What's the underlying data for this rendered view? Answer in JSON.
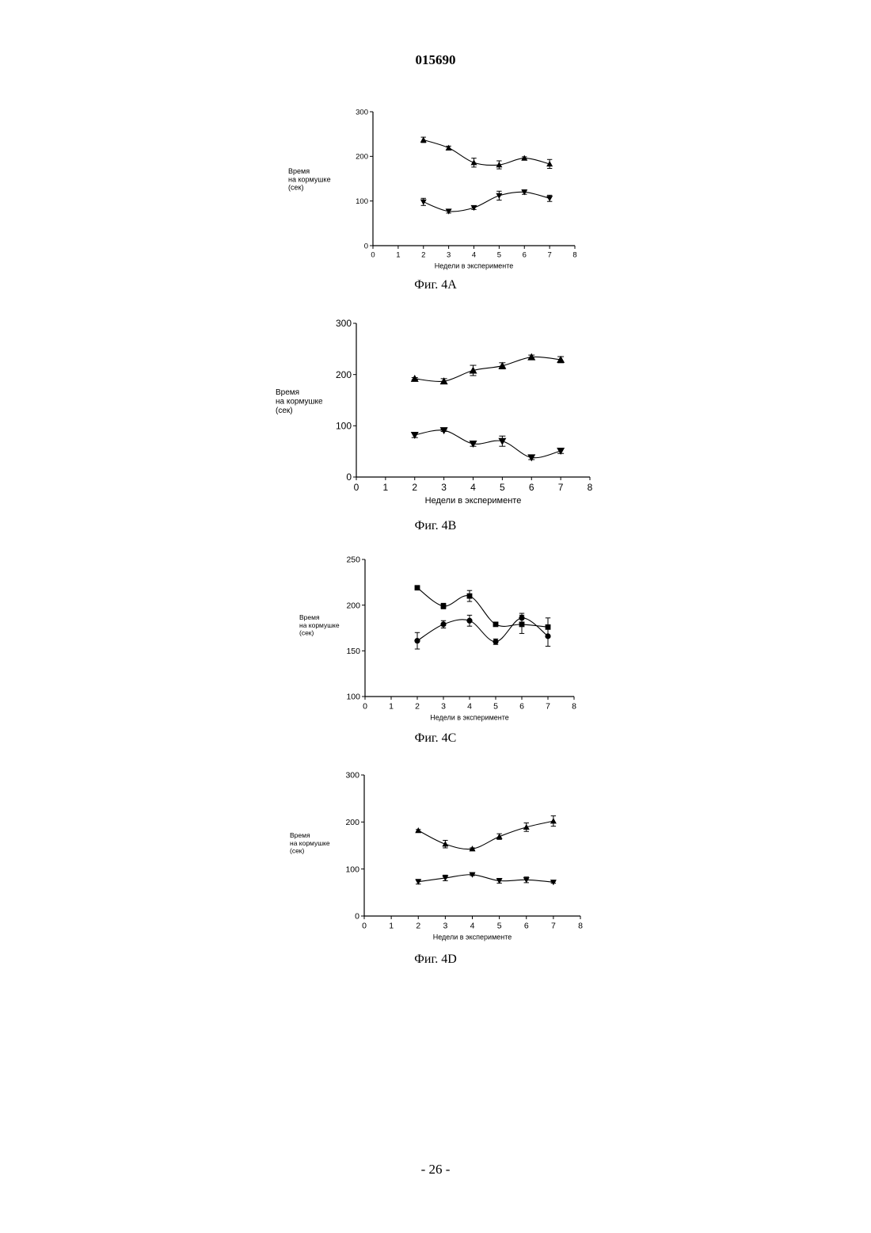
{
  "header": {
    "doc_number": "015690"
  },
  "footer": {
    "page_number": "- 26 -"
  },
  "chart_data": [
    {
      "id": "4A",
      "type": "line",
      "caption": "Фиг. 4А",
      "ylabel": [
        "Время",
        "на кормушке",
        "(сек)"
      ],
      "xlabel": "Недели в эксперименте",
      "xlim": [
        0,
        8
      ],
      "ylim": [
        0,
        300
      ],
      "xticks": [
        0,
        1,
        2,
        3,
        4,
        5,
        6,
        7,
        8
      ],
      "yticks": [
        0,
        100,
        200,
        300
      ],
      "series": [
        {
          "marker": "triangle-up",
          "x": [
            2,
            3,
            4,
            5,
            6,
            7
          ],
          "y": [
            237,
            219,
            186,
            181,
            196,
            183
          ],
          "err": [
            6,
            4,
            10,
            9,
            3,
            10
          ]
        },
        {
          "marker": "triangle-down",
          "x": [
            2,
            3,
            4,
            5,
            6,
            7
          ],
          "y": [
            98,
            77,
            85,
            112,
            120,
            106
          ],
          "err": [
            8,
            4,
            4,
            10,
            5,
            7
          ]
        }
      ]
    },
    {
      "id": "4B",
      "type": "line",
      "caption": "Фиг. 4В",
      "ylabel": [
        "Время",
        "на кормушке",
        "(сек)"
      ],
      "xlabel": "Недели в эксперименте",
      "xlim": [
        0,
        8
      ],
      "ylim": [
        0,
        300
      ],
      "xticks": [
        0,
        1,
        2,
        3,
        4,
        5,
        6,
        7,
        8
      ],
      "yticks": [
        0,
        100,
        200,
        300
      ],
      "series": [
        {
          "marker": "triangle-up",
          "x": [
            2,
            3,
            4,
            5,
            6,
            7
          ],
          "y": [
            192,
            187,
            208,
            217,
            234,
            229
          ],
          "err": [
            2,
            5,
            10,
            6,
            4,
            6
          ]
        },
        {
          "marker": "triangle-down",
          "x": [
            2,
            3,
            4,
            5,
            6,
            7
          ],
          "y": [
            82,
            91,
            65,
            70,
            38,
            51
          ],
          "err": [
            5,
            2,
            5,
            10,
            4,
            5
          ]
        }
      ]
    },
    {
      "id": "4C",
      "type": "line",
      "caption": "Фиг. 4С",
      "ylabel": [
        "Время",
        "на кормушке",
        "(сек)"
      ],
      "xlabel": "Недели в эксперименте",
      "xlim": [
        0,
        8
      ],
      "ylim": [
        100,
        250
      ],
      "xticks": [
        0,
        1,
        2,
        3,
        4,
        5,
        6,
        7,
        8
      ],
      "yticks": [
        100,
        150,
        200,
        250
      ],
      "series": [
        {
          "marker": "square",
          "x": [
            2,
            3,
            4,
            5,
            6,
            7
          ],
          "y": [
            219,
            199,
            210,
            179,
            179,
            176
          ],
          "err": [
            1,
            3,
            6,
            2,
            10,
            10
          ]
        },
        {
          "marker": "circle",
          "x": [
            2,
            3,
            4,
            5,
            6,
            7
          ],
          "y": [
            161,
            179,
            183,
            160,
            186,
            166
          ],
          "err": [
            9,
            4,
            6,
            3,
            5,
            11
          ]
        }
      ]
    },
    {
      "id": "4D",
      "type": "line",
      "caption": "Фиг. 4D",
      "ylabel": [
        "Время",
        "на кормушке",
        "(сек)"
      ],
      "xlabel": "Недели в эксперименте",
      "xlim": [
        0,
        8
      ],
      "ylim": [
        0,
        300
      ],
      "xticks": [
        0,
        1,
        2,
        3,
        4,
        5,
        6,
        7,
        8
      ],
      "yticks": [
        0,
        100,
        200,
        300
      ],
      "series": [
        {
          "marker": "triangle-up",
          "x": [
            2,
            3,
            4,
            5,
            6,
            7
          ],
          "y": [
            182,
            153,
            143,
            169,
            189,
            202
          ],
          "err": [
            2,
            8,
            2,
            6,
            9,
            11
          ]
        },
        {
          "marker": "triangle-down",
          "x": [
            2,
            3,
            4,
            5,
            6,
            7
          ],
          "y": [
            73,
            81,
            88,
            75,
            77,
            72
          ],
          "err": [
            5,
            6,
            2,
            5,
            6,
            2
          ]
        }
      ]
    }
  ]
}
